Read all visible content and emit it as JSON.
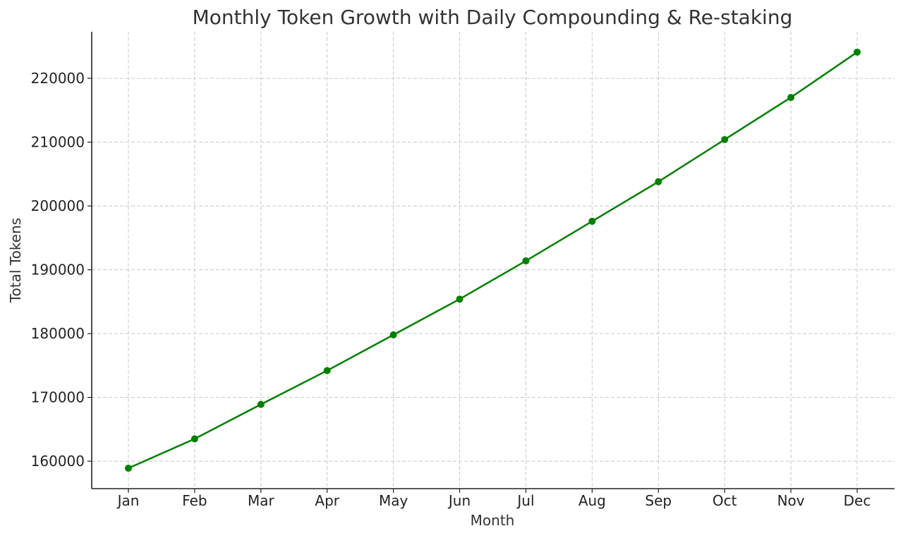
{
  "chart_data": {
    "type": "line",
    "title": "Monthly Token Growth with Daily Compounding & Re-staking",
    "xlabel": "Month",
    "ylabel": "Total Tokens",
    "categories": [
      "Jan",
      "Feb",
      "Mar",
      "Apr",
      "May",
      "Jun",
      "Jul",
      "Aug",
      "Sep",
      "Oct",
      "Nov",
      "Dec"
    ],
    "series": [
      {
        "values": [
          158900,
          163500,
          168900,
          174200,
          179800,
          185400,
          191400,
          197600,
          203800,
          210400,
          217000,
          224100
        ],
        "color": "#008000",
        "marker": "circle"
      }
    ],
    "yticks": [
      160000,
      170000,
      180000,
      190000,
      200000,
      210000,
      220000
    ],
    "ylim": [
      155700,
      227300
    ],
    "grid": true,
    "legend": "none"
  }
}
